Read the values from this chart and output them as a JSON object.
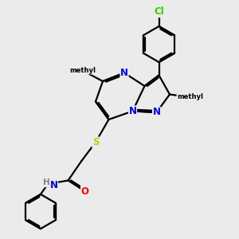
{
  "background_color": "#ebebeb",
  "atom_colors": {
    "N": "#0000ee",
    "O": "#ff0000",
    "S": "#cccc00",
    "Cl": "#33cc00",
    "C": "#000000",
    "H": "#808080"
  },
  "bond_color": "#000000",
  "bond_width": 1.6,
  "figsize": [
    3.0,
    3.0
  ],
  "dpi": 100
}
